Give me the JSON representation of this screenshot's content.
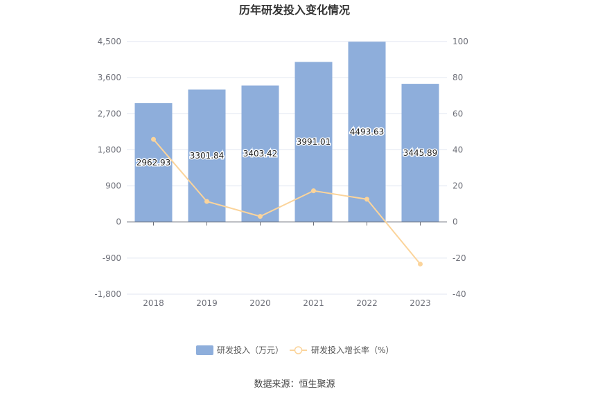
{
  "chart_data": {
    "type": "bar",
    "title": "历年研发投入变化情况",
    "categories": [
      "2018",
      "2019",
      "2020",
      "2021",
      "2022",
      "2023"
    ],
    "series": [
      {
        "name": "研发投入（万元）",
        "type": "bar",
        "axis": "left",
        "color": "#8eaedb",
        "values": [
          2962.93,
          3301.84,
          3403.42,
          3991.01,
          4493.63,
          3445.89
        ],
        "labels": [
          "2962.93",
          "3301.84",
          "3403.42",
          "3991.01",
          "4493.63",
          "3445.89"
        ]
      },
      {
        "name": "研发投入增长率（%）",
        "type": "line",
        "axis": "right",
        "color": "#fbd49b",
        "values": [
          45.8,
          11.4,
          3.1,
          17.3,
          12.6,
          -23.3
        ]
      }
    ],
    "yleft": {
      "ylim": [
        -1800,
        4500
      ],
      "ticks": [
        "-1,800",
        "-900",
        "0",
        "900",
        "1,800",
        "2,700",
        "3,600",
        "4,500"
      ],
      "tick_values": [
        -1800,
        -900,
        0,
        900,
        1800,
        2700,
        3600,
        4500
      ]
    },
    "yright": {
      "ylim": [
        -40,
        100
      ],
      "ticks": [
        "-40",
        "-20",
        "0",
        "20",
        "40",
        "60",
        "80",
        "100"
      ],
      "tick_values": [
        -40,
        -20,
        0,
        20,
        40,
        60,
        80,
        100
      ]
    },
    "grid": true,
    "legend_position": "bottom"
  },
  "source": "数据来源：恒生聚源"
}
